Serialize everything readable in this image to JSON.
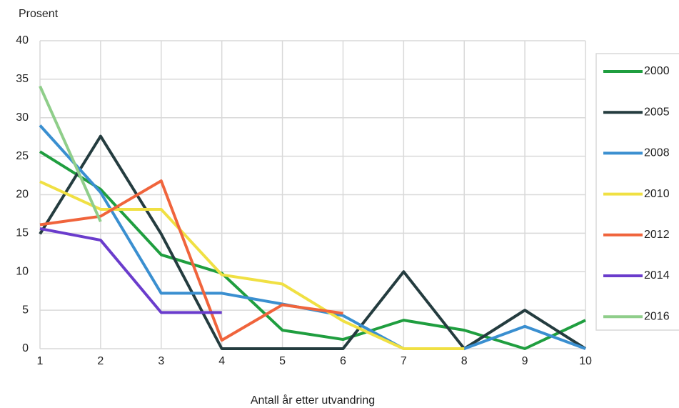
{
  "chart_data": {
    "type": "line",
    "y_label": "Prosent",
    "x_label": "Antall år etter utvandring",
    "x": [
      1,
      2,
      3,
      4,
      5,
      6,
      7,
      8,
      9,
      10
    ],
    "xlim": [
      1,
      10
    ],
    "xticks": [
      1,
      2,
      3,
      4,
      5,
      6,
      7,
      8,
      9,
      10
    ],
    "ylim": [
      0,
      40
    ],
    "yticks": [
      0,
      5,
      10,
      15,
      20,
      25,
      30,
      35,
      40
    ],
    "grid": true,
    "legend": "right",
    "series": [
      {
        "name": "2000",
        "color": "#1f9e3f",
        "values": [
          25.6,
          20.7,
          12.2,
          9.8,
          2.4,
          1.2,
          3.7,
          2.4,
          0,
          3.7
        ]
      },
      {
        "name": "2005",
        "color": "#243c3f",
        "values": [
          14.9,
          27.6,
          14.9,
          0,
          0,
          0,
          10,
          0,
          5,
          0
        ]
      },
      {
        "name": "2008",
        "color": "#3a8fd0",
        "values": [
          29.0,
          20.3,
          7.2,
          7.2,
          5.8,
          4.3,
          0,
          0,
          2.9,
          0
        ]
      },
      {
        "name": "2010",
        "color": "#f0e043",
        "values": [
          21.7,
          18.1,
          18.1,
          9.6,
          8.4,
          3.6,
          0,
          0,
          null,
          null
        ]
      },
      {
        "name": "2012",
        "color": "#f0643c",
        "values": [
          16.1,
          17.2,
          21.8,
          1.1,
          5.7,
          4.6,
          null,
          null,
          null,
          null
        ]
      },
      {
        "name": "2014",
        "color": "#6a3ccc",
        "values": [
          15.6,
          14.1,
          4.7,
          4.7,
          null,
          null,
          null,
          null,
          null,
          null
        ]
      },
      {
        "name": "2016",
        "color": "#8fce8a",
        "values": [
          34.1,
          16.5,
          null,
          null,
          null,
          null,
          null,
          null,
          null,
          null
        ]
      }
    ]
  }
}
